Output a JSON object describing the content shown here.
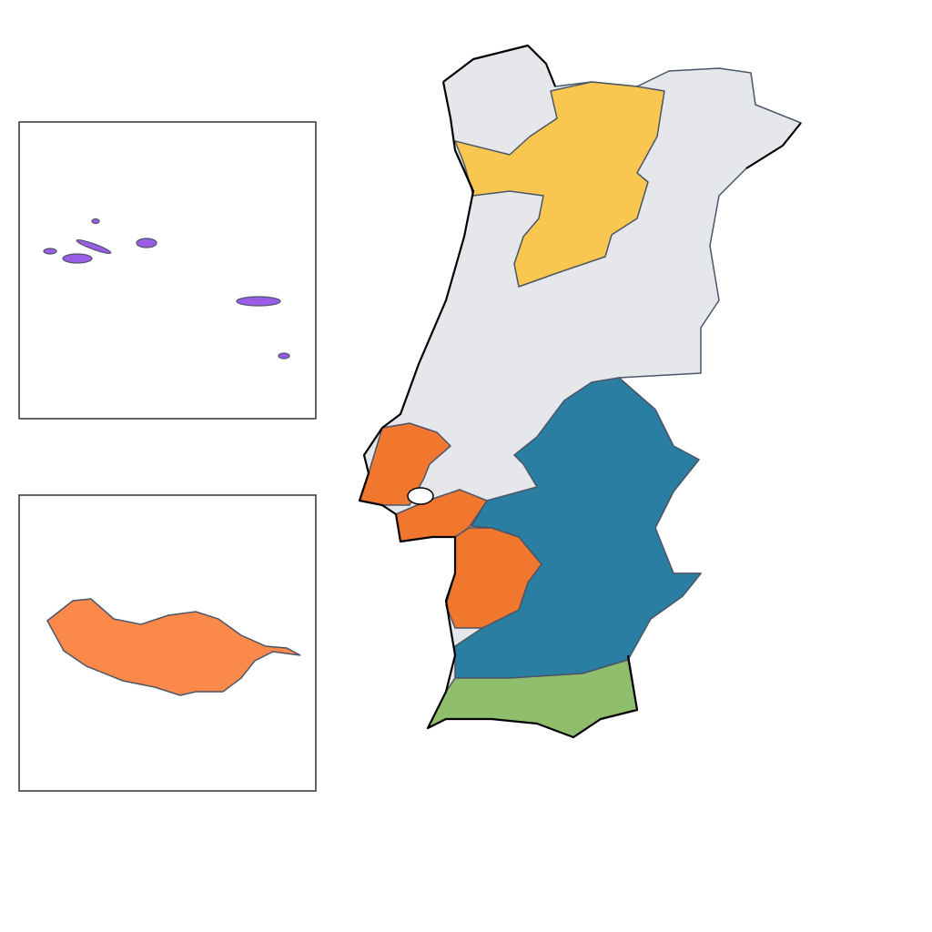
{
  "map": {
    "type": "choropleth",
    "colors": {
      "base": "#e5e7eb",
      "north_highlight": "#f9c74f",
      "alentejo": "#2a7ea2",
      "lisbon_setubal": "#f1772f",
      "algarve": "#90be6d",
      "azores": "#9b5de5",
      "madeira": "#fb8a4a",
      "border": "#4a5568",
      "coastline": "#000000"
    },
    "insets": [
      "azores",
      "madeira"
    ]
  }
}
